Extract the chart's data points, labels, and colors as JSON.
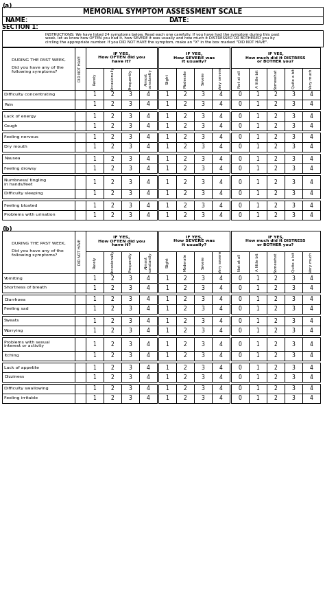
{
  "title": "MEMORIAL SYMPTOM ASSESSMENT SCALE",
  "section_a_label": "(a)",
  "section_b_label": "(b)",
  "name_label": "NAME:",
  "date_label": "DATE:",
  "section1_label": "SECTION 1:",
  "instructions": "INSTRUCTIONS: We have listed 24 symptoms below. Read each one carefully. If you have had the symptom during this past\nweek, let us know how OFTEN you had it, how SEVERE it was usually and how much it DISTRESSED OR BOTHERED you by\ncircling the appropriate number. If you DID NOT HAVE the symptom, make an \"X\" in the box marked \"DID NOT HAVE\".",
  "col_header_left": "DURING THE PAST WEEK,\n\nDid you have any of the\nfollowing symptoms?",
  "col_header_dnh": "DID NOT HAVE",
  "col_header_ifyes1": "IF YES,\nHow OFTEN did you\nhave it?",
  "col_header_ifyes2": "IF YES,\nHow SEVERE was\nit usually?",
  "col_header_ifyes3": "IF YES,\nHow much did it DISTRESS\nor BOTHER you?",
  "often_labels": [
    "Rarely",
    "Occasionally",
    "Frequently",
    "Almost\nconstantly"
  ],
  "severe_labels": [
    "Slight",
    "Moderate",
    "Severe",
    "Very severe"
  ],
  "distress_labels": [
    "Not at all",
    "A little bit",
    "Somewhat",
    "Quite a bit",
    "Very much"
  ],
  "section_a_symptoms": [
    [
      "Difficulty concentrating",
      "Pain"
    ],
    [
      "Lack of energy",
      "Cough"
    ],
    [
      "Feeling nervous",
      "Dry mouth"
    ],
    [
      "Nausea",
      "Feeling drowsy"
    ],
    [
      "Numbness/ tingling\nin hands/feet",
      "Difficulty sleeping"
    ],
    [
      "Feeling bloated",
      "Problems with urination"
    ]
  ],
  "section_b_symptoms": [
    [
      "Vomiting",
      "Shortness of breath"
    ],
    [
      "Diarrhoea",
      "Feeling sad"
    ],
    [
      "Sweats",
      "Worrying"
    ],
    [
      "Problems with sexual\ninterest or activity",
      "Itching"
    ],
    [
      "Lack of appetite",
      "Dizziness"
    ],
    [
      "Difficulty swallowing",
      "Feeling irritable"
    ]
  ]
}
